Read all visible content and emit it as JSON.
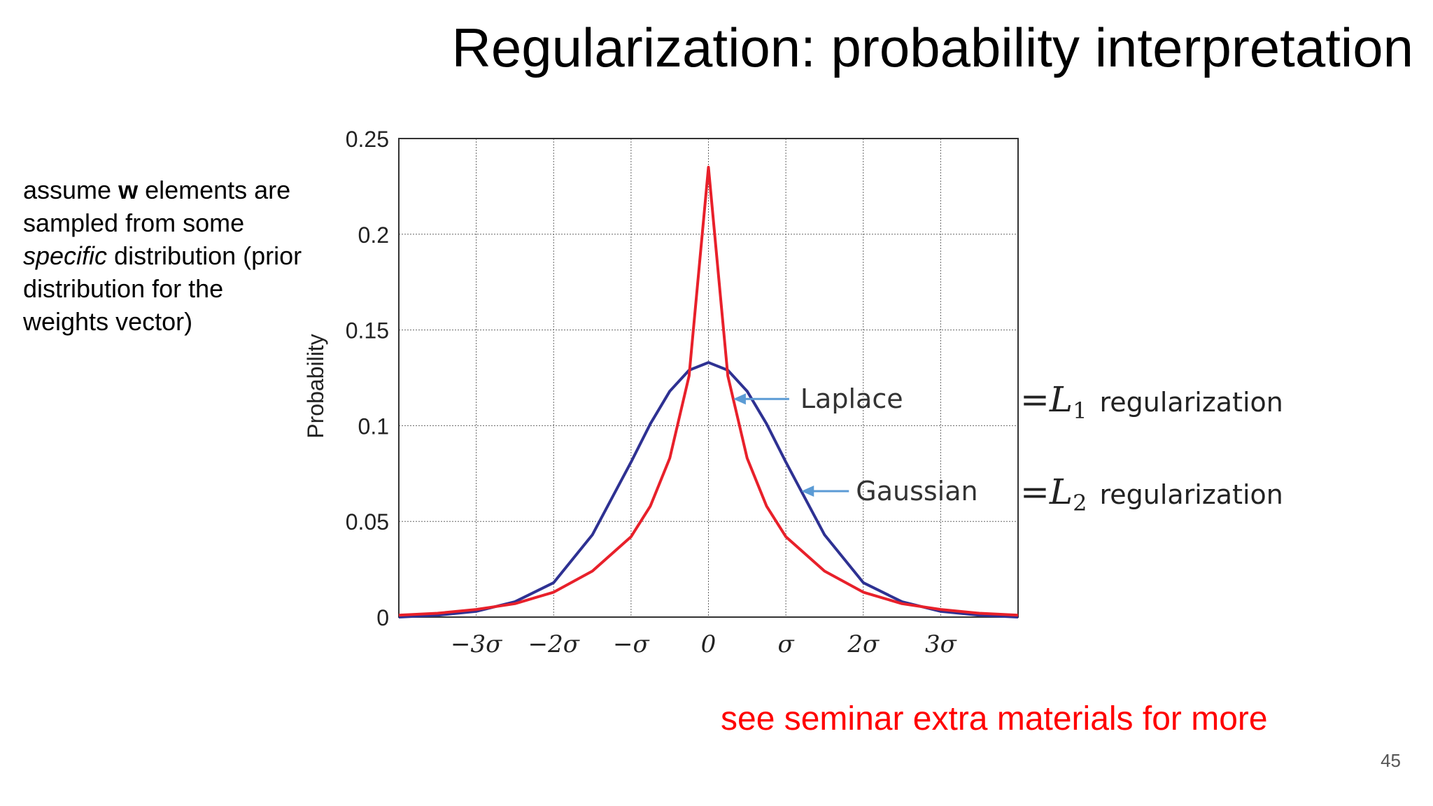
{
  "slide": {
    "title": "Regularization: probability interpretation",
    "left_text": {
      "part1": "assume ",
      "bold": "w",
      "part2": " elements are sampled from some ",
      "italic": "specific",
      "part3": " distribution (prior distribution for the weights vector)"
    },
    "footer_note": "see seminar extra materials for more",
    "page_number": "45",
    "colors": {
      "laplace": "#e8202a",
      "gaussian": "#2e3192",
      "arrow": "#5b9bd5",
      "footer": "#ff0000"
    }
  },
  "chart_data": {
    "type": "line",
    "title": "",
    "xlabel": "",
    "ylabel": "Probability",
    "xlim": [
      -4,
      4
    ],
    "ylim": [
      0,
      0.25
    ],
    "grid": true,
    "x_ticks": [
      -3,
      -2,
      -1,
      0,
      1,
      2,
      3
    ],
    "x_tick_labels": [
      "−3σ",
      "−2σ",
      "−σ",
      "0",
      "σ",
      "2σ",
      "3σ"
    ],
    "y_ticks": [
      0,
      0.05,
      0.1,
      0.15,
      0.2,
      0.25
    ],
    "y_tick_labels": [
      "0",
      "0.05",
      "0.1",
      "0.15",
      "0.2",
      "0.25"
    ],
    "series": [
      {
        "name": "Laplace",
        "color": "#e8202a",
        "x": [
          -4,
          -3.5,
          -3,
          -2.5,
          -2,
          -1.5,
          -1,
          -0.75,
          -0.5,
          -0.25,
          0,
          0.25,
          0.5,
          0.75,
          1,
          1.5,
          2,
          2.5,
          3,
          3.5,
          4
        ],
        "y": [
          0.001,
          0.002,
          0.004,
          0.007,
          0.013,
          0.024,
          0.042,
          0.058,
          0.083,
          0.126,
          0.235,
          0.126,
          0.083,
          0.058,
          0.042,
          0.024,
          0.013,
          0.007,
          0.004,
          0.002,
          0.001
        ]
      },
      {
        "name": "Gaussian",
        "color": "#2e3192",
        "x": [
          -4,
          -3.5,
          -3,
          -2.5,
          -2,
          -1.5,
          -1,
          -0.75,
          -0.5,
          -0.25,
          0,
          0.25,
          0.5,
          0.75,
          1,
          1.5,
          2,
          2.5,
          3,
          3.5,
          4
        ],
        "y": [
          0.0,
          0.001,
          0.003,
          0.008,
          0.018,
          0.043,
          0.081,
          0.101,
          0.118,
          0.129,
          0.133,
          0.129,
          0.118,
          0.101,
          0.081,
          0.043,
          0.018,
          0.008,
          0.003,
          0.001,
          0.0
        ]
      }
    ],
    "annotations": [
      {
        "label": "Laplace",
        "equals": "=",
        "norm": "L",
        "subscript": "1",
        "suffix": "regularization"
      },
      {
        "label": "Gaussian",
        "equals": "=",
        "norm": "L",
        "subscript": "2",
        "suffix": "regularization"
      }
    ]
  }
}
